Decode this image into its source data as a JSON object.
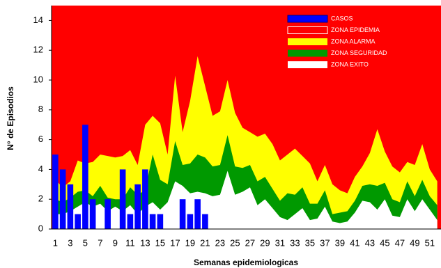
{
  "chart_data": {
    "type": "epidemic-channel",
    "x_label": "Semanas epidemiologicas",
    "y_label": "N° de Episodios",
    "categories": [
      1,
      null,
      3,
      null,
      5,
      null,
      7,
      null,
      9,
      null,
      11,
      null,
      13,
      null,
      15,
      null,
      17,
      null,
      19,
      null,
      21,
      null,
      23,
      null,
      25,
      null,
      27,
      null,
      29,
      null,
      31,
      null,
      33,
      null,
      35,
      null,
      37,
      null,
      39,
      null,
      41,
      null,
      43,
      null,
      45,
      null,
      47,
      null,
      49,
      null,
      51,
      null
    ],
    "ylim": [
      0,
      15
    ],
    "yticks": [
      0,
      2,
      4,
      6,
      8,
      10,
      12,
      14
    ],
    "series": [
      {
        "name": "CASOS",
        "type": "bar",
        "color": "#0000ff",
        "values": [
          5,
          4,
          3,
          1,
          7,
          2,
          0,
          2,
          0,
          4,
          1,
          3,
          4,
          1,
          1,
          0,
          0,
          2,
          1,
          2,
          1,
          null,
          null,
          null,
          null,
          null,
          null,
          null,
          null,
          null,
          null,
          null,
          null,
          null,
          null,
          null,
          null,
          null,
          null,
          null,
          null,
          null,
          null,
          null,
          null,
          null,
          null,
          null,
          null,
          null,
          null,
          null
        ]
      },
      {
        "name": "ZONA EPIDEMIA",
        "type": "background",
        "color": "#ff0000"
      },
      {
        "name": "ZONA ALARMA",
        "type": "area",
        "color": "#ffff00",
        "values": [
          3.3,
          2.8,
          3.2,
          4.6,
          4.4,
          4.5,
          5.0,
          4.9,
          4.8,
          4.9,
          5.3,
          4.3,
          7.0,
          7.6,
          7.1,
          5.0,
          10.3,
          6.5,
          8.6,
          11.6,
          9.6,
          7.6,
          7.9,
          10.0,
          7.8,
          6.8,
          6.5,
          6.2,
          6.4,
          5.7,
          4.6,
          5.0,
          5.4,
          4.9,
          4.4,
          3.2,
          4.3,
          3.0,
          2.6,
          2.4,
          3.5,
          4.2,
          5.1,
          6.7,
          5.2,
          4.2,
          3.8,
          4.5,
          4.3,
          5.7,
          4.0,
          3.2
        ]
      },
      {
        "name": "ZONA SEGURIDAD",
        "type": "area",
        "color": "#009900",
        "values": [
          2.0,
          1.8,
          2.1,
          2.5,
          2.6,
          2.2,
          2.9,
          2.1,
          2.0,
          2.0,
          2.8,
          2.3,
          2.6,
          5.0,
          3.3,
          3.0,
          5.9,
          4.3,
          4.4,
          5.0,
          4.8,
          4.2,
          4.3,
          6.3,
          4.2,
          4.1,
          4.3,
          3.2,
          3.5,
          2.7,
          1.9,
          2.4,
          2.3,
          2.8,
          1.7,
          1.7,
          2.6,
          1.0,
          1.1,
          1.2,
          1.9,
          2.9,
          3.0,
          2.9,
          3.1,
          2.0,
          1.8,
          3.2,
          2.2,
          3.3,
          2.2,
          1.6
        ]
      },
      {
        "name": "ZONA EXITO",
        "type": "area",
        "color": "#ffffff",
        "values": [
          1.0,
          1.0,
          1.2,
          1.5,
          1.8,
          1.5,
          1.7,
          1.2,
          1.5,
          1.2,
          1.6,
          1.0,
          1.5,
          1.8,
          1.3,
          1.8,
          3.2,
          2.9,
          2.4,
          2.5,
          2.4,
          2.2,
          2.3,
          3.9,
          2.3,
          2.5,
          2.8,
          1.6,
          2.0,
          1.4,
          0.8,
          0.6,
          1.0,
          1.4,
          0.6,
          0.7,
          1.5,
          0.5,
          0.4,
          0.5,
          1.1,
          1.9,
          1.8,
          1.3,
          2.0,
          0.9,
          0.8,
          2.0,
          1.2,
          2.0,
          1.3,
          0.6
        ]
      }
    ]
  }
}
